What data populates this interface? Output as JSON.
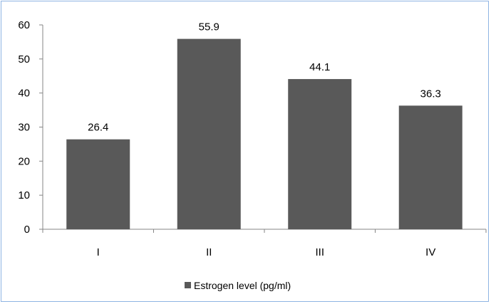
{
  "chart_data": {
    "type": "bar",
    "categories": [
      "I",
      "II",
      "III",
      "IV"
    ],
    "series": [
      {
        "name": "Estrogen level (pg/ml)",
        "values": [
          26.4,
          55.9,
          44.1,
          36.3
        ],
        "color": "#595959"
      }
    ],
    "data_labels": [
      "26.4",
      "55.9",
      "44.1",
      "36.3"
    ],
    "title": "",
    "xlabel": "",
    "ylabel": "",
    "ylim": [
      0,
      60
    ],
    "yticks": [
      0,
      10,
      20,
      30,
      40,
      50,
      60
    ],
    "grid": false,
    "legend_position": "bottom",
    "frame_color": "#8eb4e3",
    "axis_color": "#868686"
  }
}
